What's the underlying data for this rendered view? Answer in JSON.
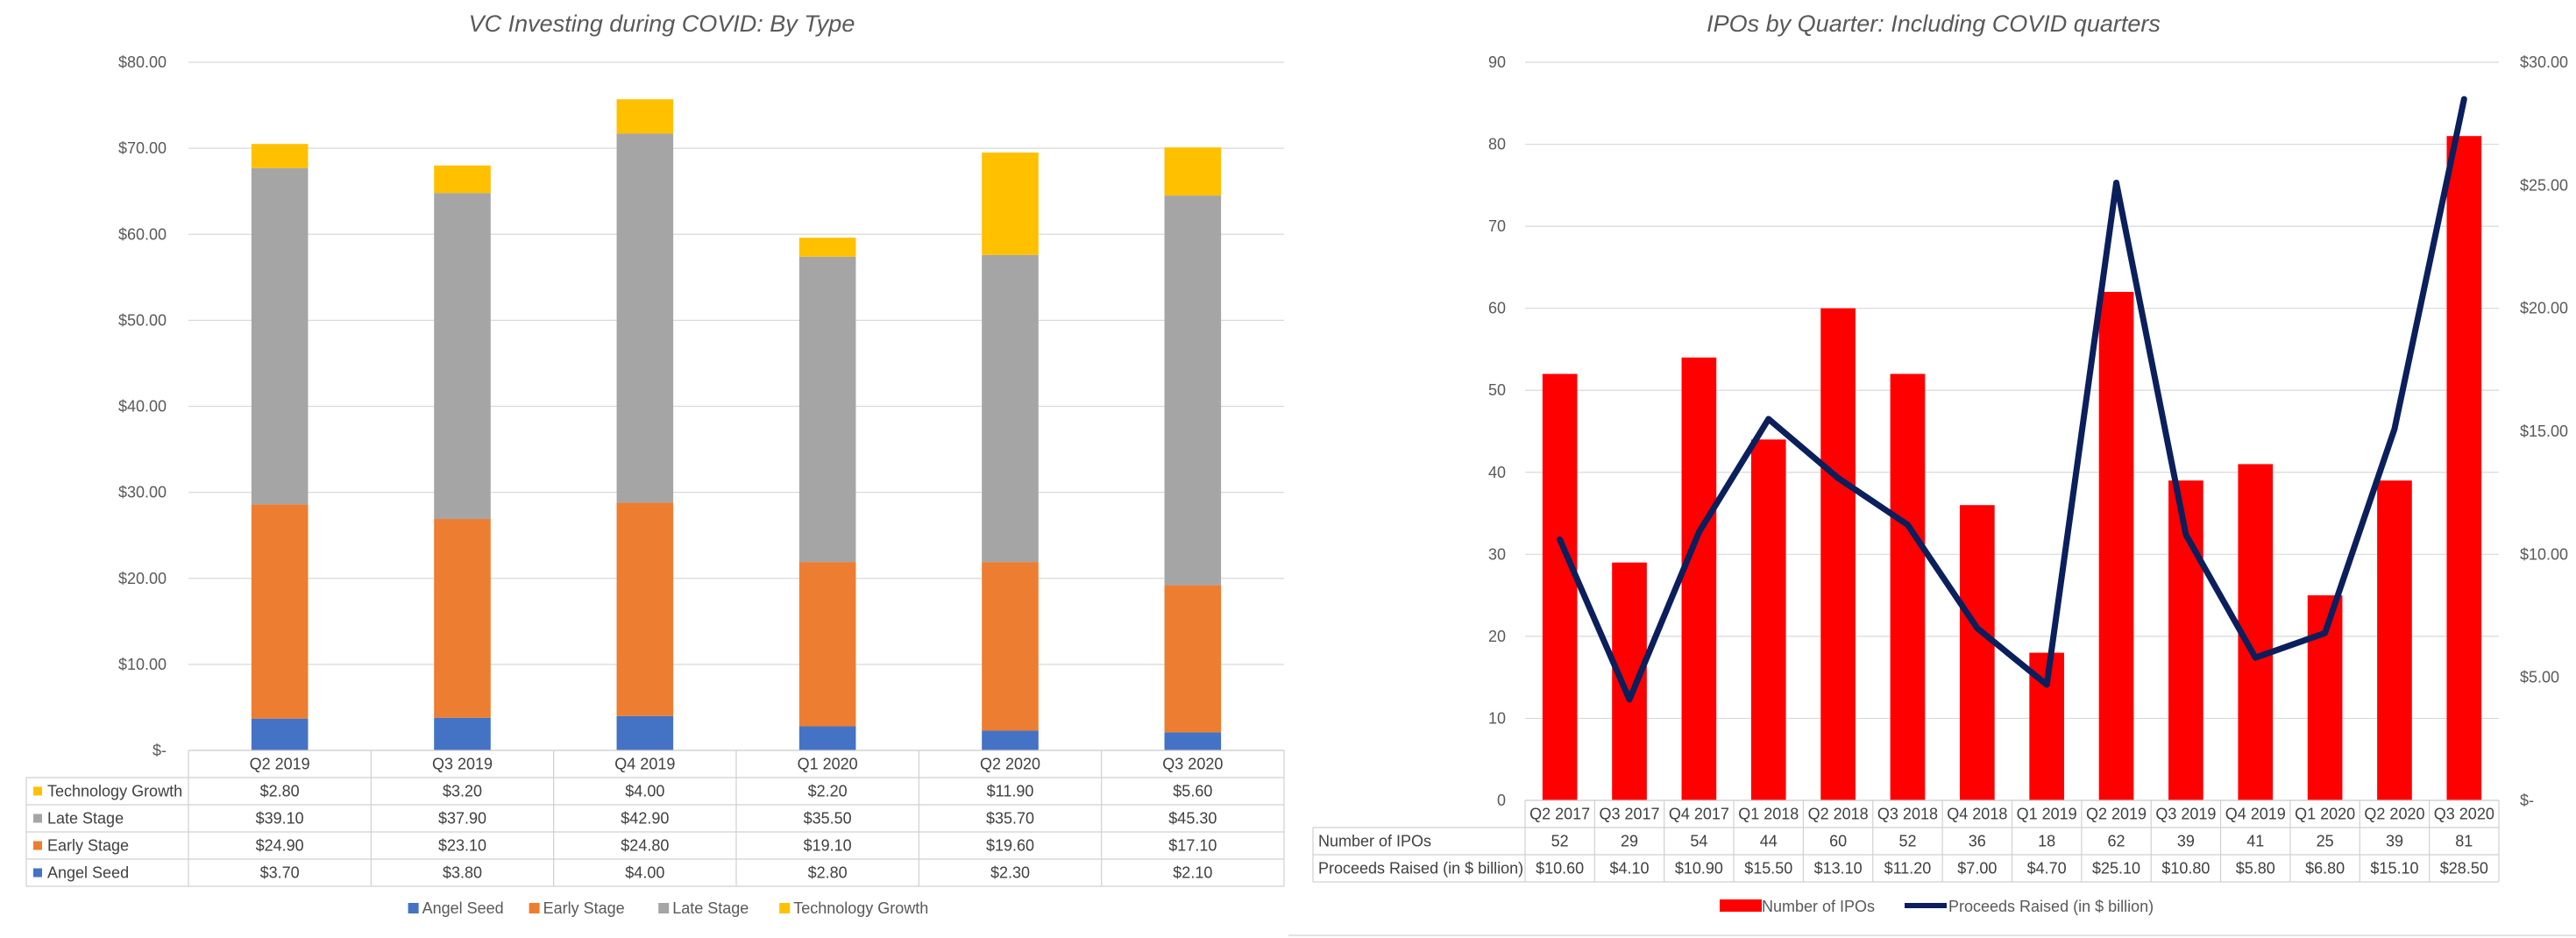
{
  "chart_data": [
    {
      "type": "bar",
      "stacked": true,
      "title": "VC Investing during COVID: By Type",
      "categories": [
        "Q2 2019",
        "Q3 2019",
        "Q4 2019",
        "Q1 2020",
        "Q2 2020",
        "Q3 2020"
      ],
      "ylim": [
        0,
        80
      ],
      "y_ticks": [
        "$-",
        "$10.00",
        "$20.00",
        "$30.00",
        "$40.00",
        "$50.00",
        "$60.00",
        "$70.00",
        "$80.00"
      ],
      "series": [
        {
          "name": "Angel Seed",
          "color": "#4472c4",
          "values": [
            3.7,
            3.8,
            4.0,
            2.8,
            2.3,
            2.1
          ],
          "labels": [
            "$3.70",
            "$3.80",
            "$4.00",
            "$2.80",
            "$2.30",
            "$2.10"
          ]
        },
        {
          "name": "Early Stage",
          "color": "#ed7d31",
          "values": [
            24.9,
            23.1,
            24.8,
            19.1,
            19.6,
            17.1
          ],
          "labels": [
            "$24.90",
            "$23.10",
            "$24.80",
            "$19.10",
            "$19.60",
            "$17.10"
          ]
        },
        {
          "name": "Late Stage",
          "color": "#a5a5a5",
          "values": [
            39.1,
            37.9,
            42.9,
            35.5,
            35.7,
            45.3
          ],
          "labels": [
            "$39.10",
            "$37.90",
            "$42.90",
            "$35.50",
            "$35.70",
            "$45.30"
          ]
        },
        {
          "name": "Technology Growth",
          "color": "#ffc000",
          "values": [
            2.8,
            3.2,
            4.0,
            2.2,
            11.9,
            5.6
          ],
          "labels": [
            "$2.80",
            "$3.20",
            "$4.00",
            "$2.20",
            "$11.90",
            "$5.60"
          ]
        }
      ],
      "legend": "bottom",
      "data_table": true
    },
    {
      "type": "bar+line",
      "title": "IPOs by Quarter: Including COVID quarters",
      "categories": [
        "Q2 2017",
        "Q3 2017",
        "Q4 2017",
        "Q1 2018",
        "Q2 2018",
        "Q3 2018",
        "Q4 2018",
        "Q1 2019",
        "Q2 2019",
        "Q3 2019",
        "Q4 2019",
        "Q1 2020",
        "Q2 2020",
        "Q3 2020"
      ],
      "ylim": [
        0,
        90
      ],
      "y_ticks": [
        "0",
        "10",
        "20",
        "30",
        "40",
        "50",
        "60",
        "70",
        "80",
        "90"
      ],
      "y2lim": [
        0,
        30
      ],
      "y2_ticks": [
        "$-",
        "$5.00",
        "$10.00",
        "$15.00",
        "$20.00",
        "$25.00",
        "$30.00"
      ],
      "series": [
        {
          "name": "Number of IPOs",
          "type": "bar",
          "axis": "left",
          "color": "#ff0000",
          "values": [
            52,
            29,
            54,
            44,
            60,
            52,
            36,
            18,
            62,
            39,
            41,
            25,
            39,
            81
          ],
          "labels": [
            "52",
            "29",
            "54",
            "44",
            "60",
            "52",
            "36",
            "18",
            "62",
            "39",
            "41",
            "25",
            "39",
            "81"
          ]
        },
        {
          "name": "Proceeds Raised (in $ billion)",
          "type": "line",
          "axis": "right",
          "color": "#0b1f5c",
          "values": [
            10.6,
            4.1,
            10.9,
            15.5,
            13.1,
            11.2,
            7.0,
            4.7,
            25.1,
            10.8,
            5.8,
            6.8,
            15.1,
            28.5
          ],
          "labels": [
            "$10.60",
            "$4.10",
            "$10.90",
            "$15.50",
            "$13.10",
            "$11.20",
            "$7.00",
            "$4.70",
            "$25.10",
            "$10.80",
            "$5.80",
            "$6.80",
            "$15.10",
            "$28.50"
          ]
        }
      ],
      "legend": "bottom",
      "data_table": true
    }
  ]
}
